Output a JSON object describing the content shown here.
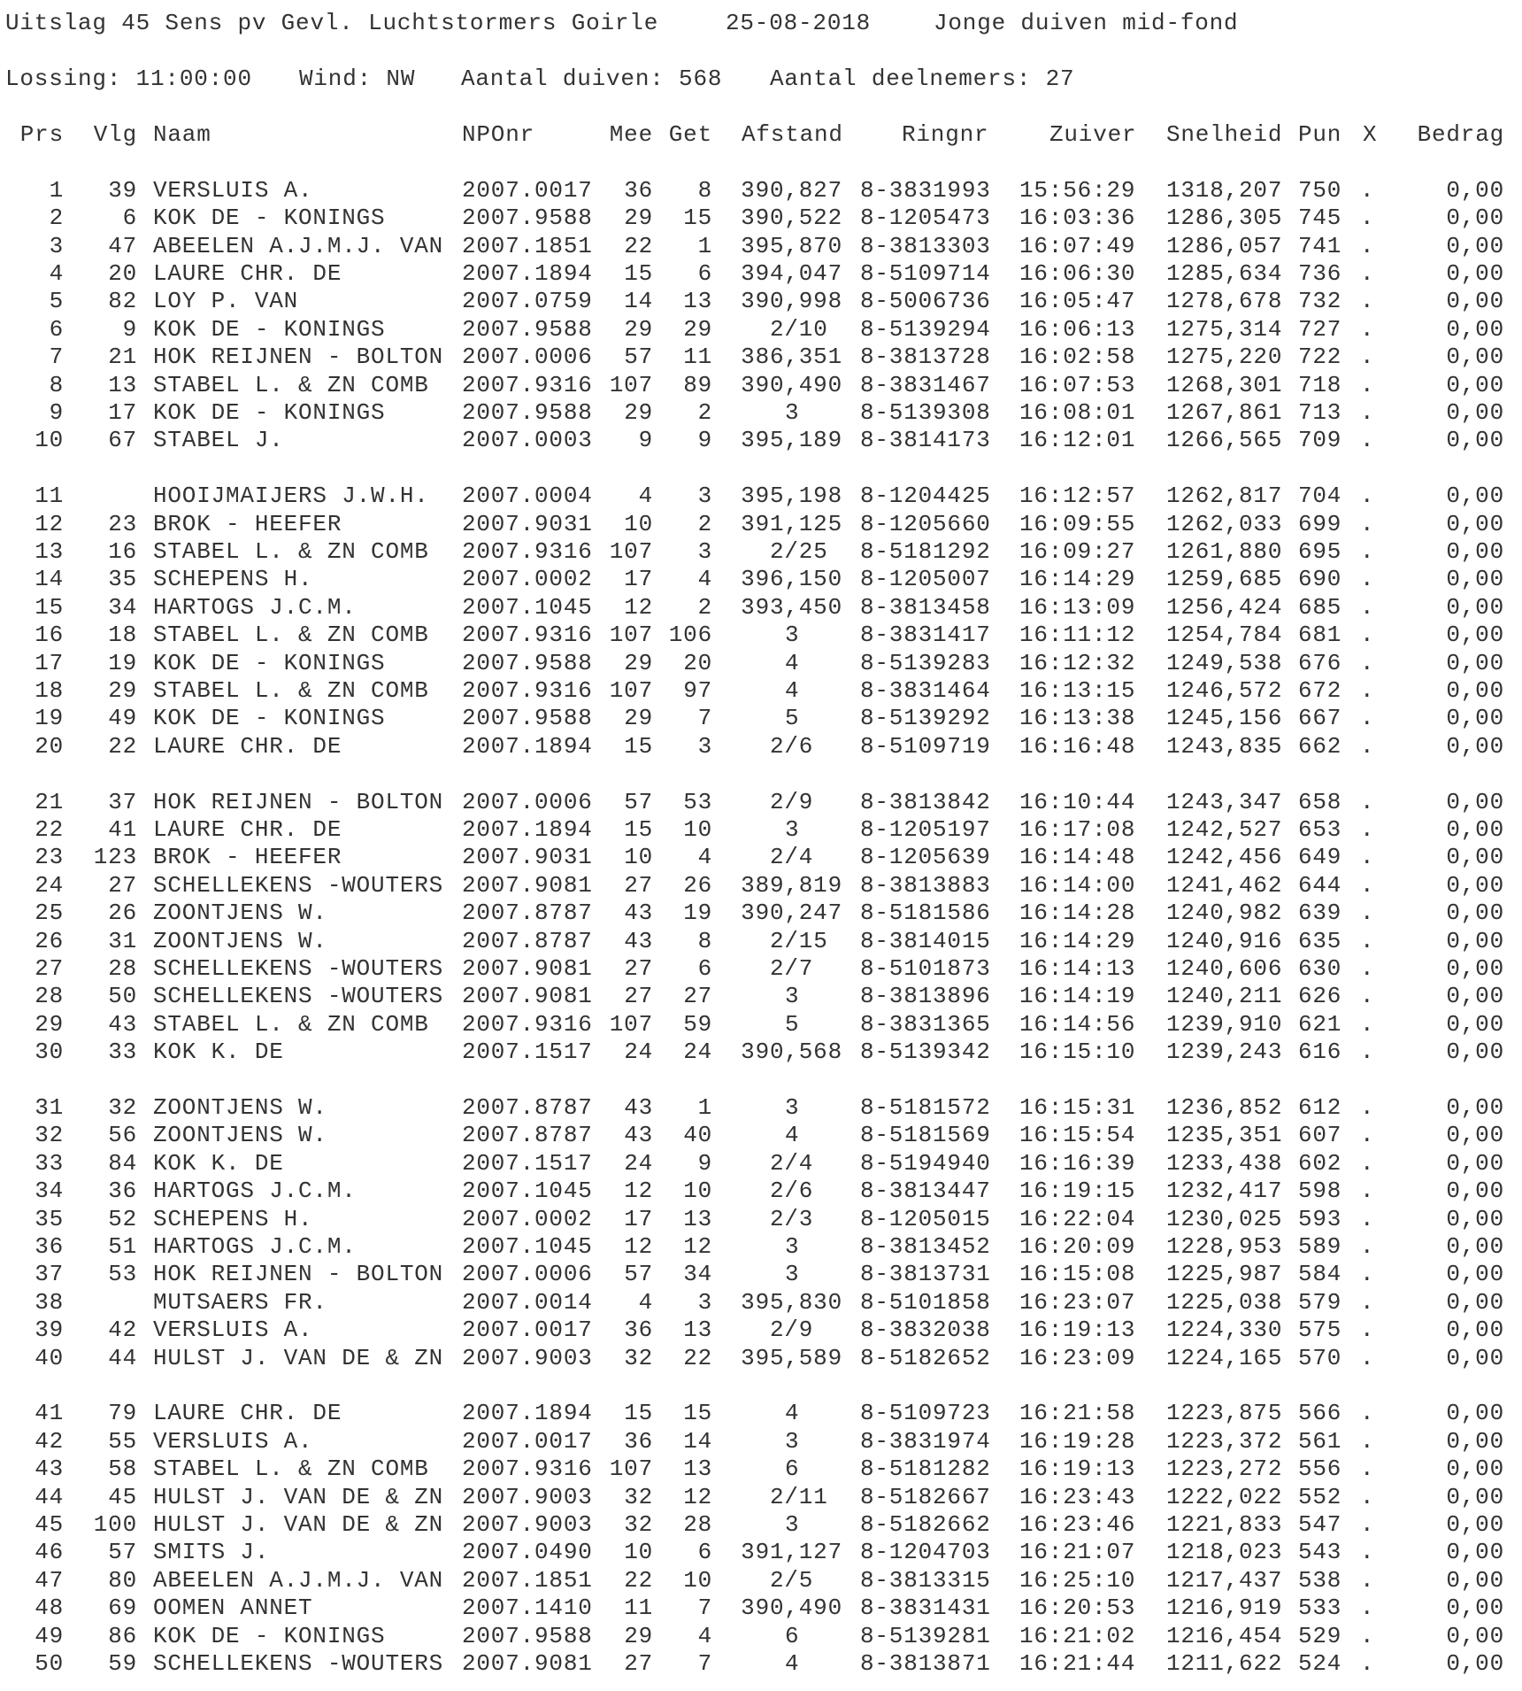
{
  "header": {
    "title": "Uitslag 45 Sens pv Gevl. Luchtstormers Goirle",
    "date": "25-08-2018",
    "category": "Jonge duiven mid-fond",
    "lossing": "Lossing: 11:00:00",
    "wind": "Wind: NW",
    "aantal_duiven": "Aantal duiven: 568",
    "aantal_deelnemers": "Aantal deelnemers: 27"
  },
  "columns": [
    "Prs",
    "Vlg",
    "Naam",
    "NPOnr",
    "Mee",
    "Get",
    "Afstand",
    "Ringnr",
    "Zuiver",
    "Snelheid",
    "Pun",
    "X",
    "Bedrag"
  ],
  "rows": [
    [
      "1",
      "39",
      "VERSLUIS A.",
      "2007.0017",
      "36",
      "8",
      "390,827",
      "8-3831993",
      "15:56:29",
      "1318,207",
      "750",
      ".",
      "0,00"
    ],
    [
      "2",
      "6",
      "KOK DE - KONINGS",
      "2007.9588",
      "29",
      "15",
      "390,522",
      "8-1205473",
      "16:03:36",
      "1286,305",
      "745",
      ".",
      "0,00"
    ],
    [
      "3",
      "47",
      "ABEELEN A.J.M.J. VAN",
      "2007.1851",
      "22",
      "1",
      "395,870",
      "8-3813303",
      "16:07:49",
      "1286,057",
      "741",
      ".",
      "0,00"
    ],
    [
      "4",
      "20",
      "LAURE CHR. DE",
      "2007.1894",
      "15",
      "6",
      "394,047",
      "8-5109714",
      "16:06:30",
      "1285,634",
      "736",
      ".",
      "0,00"
    ],
    [
      "5",
      "82",
      "LOY P. VAN",
      "2007.0759",
      "14",
      "13",
      "390,998",
      "8-5006736",
      "16:05:47",
      "1278,678",
      "732",
      ".",
      "0,00"
    ],
    [
      "6",
      "9",
      "KOK DE - KONINGS",
      "2007.9588",
      "29",
      "29",
      "2/10",
      "8-5139294",
      "16:06:13",
      "1275,314",
      "727",
      ".",
      "0,00"
    ],
    [
      "7",
      "21",
      "HOK REIJNEN - BOLTON",
      "2007.0006",
      "57",
      "11",
      "386,351",
      "8-3813728",
      "16:02:58",
      "1275,220",
      "722",
      ".",
      "0,00"
    ],
    [
      "8",
      "13",
      "STABEL L. & ZN COMB",
      "2007.9316",
      "107",
      "89",
      "390,490",
      "8-3831467",
      "16:07:53",
      "1268,301",
      "718",
      ".",
      "0,00"
    ],
    [
      "9",
      "17",
      "KOK DE - KONINGS",
      "2007.9588",
      "29",
      "2",
      "3",
      "8-5139308",
      "16:08:01",
      "1267,861",
      "713",
      ".",
      "0,00"
    ],
    [
      "10",
      "67",
      "STABEL J.",
      "2007.0003",
      "9",
      "9",
      "395,189",
      "8-3814173",
      "16:12:01",
      "1266,565",
      "709",
      ".",
      "0,00"
    ],
    [
      "11",
      "",
      "HOOIJMAIJERS J.W.H.",
      "2007.0004",
      "4",
      "3",
      "395,198",
      "8-1204425",
      "16:12:57",
      "1262,817",
      "704",
      ".",
      "0,00"
    ],
    [
      "12",
      "23",
      "BROK - HEEFER",
      "2007.9031",
      "10",
      "2",
      "391,125",
      "8-1205660",
      "16:09:55",
      "1262,033",
      "699",
      ".",
      "0,00"
    ],
    [
      "13",
      "16",
      "STABEL L. & ZN COMB",
      "2007.9316",
      "107",
      "3",
      "2/25",
      "8-5181292",
      "16:09:27",
      "1261,880",
      "695",
      ".",
      "0,00"
    ],
    [
      "14",
      "35",
      "SCHEPENS H.",
      "2007.0002",
      "17",
      "4",
      "396,150",
      "8-1205007",
      "16:14:29",
      "1259,685",
      "690",
      ".",
      "0,00"
    ],
    [
      "15",
      "34",
      "HARTOGS J.C.M.",
      "2007.1045",
      "12",
      "2",
      "393,450",
      "8-3813458",
      "16:13:09",
      "1256,424",
      "685",
      ".",
      "0,00"
    ],
    [
      "16",
      "18",
      "STABEL L. & ZN COMB",
      "2007.9316",
      "107",
      "106",
      "3",
      "8-3831417",
      "16:11:12",
      "1254,784",
      "681",
      ".",
      "0,00"
    ],
    [
      "17",
      "19",
      "KOK DE - KONINGS",
      "2007.9588",
      "29",
      "20",
      "4",
      "8-5139283",
      "16:12:32",
      "1249,538",
      "676",
      ".",
      "0,00"
    ],
    [
      "18",
      "29",
      "STABEL L. & ZN COMB",
      "2007.9316",
      "107",
      "97",
      "4",
      "8-3831464",
      "16:13:15",
      "1246,572",
      "672",
      ".",
      "0,00"
    ],
    [
      "19",
      "49",
      "KOK DE - KONINGS",
      "2007.9588",
      "29",
      "7",
      "5",
      "8-5139292",
      "16:13:38",
      "1245,156",
      "667",
      ".",
      "0,00"
    ],
    [
      "20",
      "22",
      "LAURE CHR. DE",
      "2007.1894",
      "15",
      "3",
      "2/6",
      "8-5109719",
      "16:16:48",
      "1243,835",
      "662",
      ".",
      "0,00"
    ],
    [
      "21",
      "37",
      "HOK REIJNEN - BOLTON",
      "2007.0006",
      "57",
      "53",
      "2/9",
      "8-3813842",
      "16:10:44",
      "1243,347",
      "658",
      ".",
      "0,00"
    ],
    [
      "22",
      "41",
      "LAURE CHR. DE",
      "2007.1894",
      "15",
      "10",
      "3",
      "8-1205197",
      "16:17:08",
      "1242,527",
      "653",
      ".",
      "0,00"
    ],
    [
      "23",
      "123",
      "BROK - HEEFER",
      "2007.9031",
      "10",
      "4",
      "2/4",
      "8-1205639",
      "16:14:48",
      "1242,456",
      "649",
      ".",
      "0,00"
    ],
    [
      "24",
      "27",
      "SCHELLEKENS -WOUTERS",
      "2007.9081",
      "27",
      "26",
      "389,819",
      "8-3813883",
      "16:14:00",
      "1241,462",
      "644",
      ".",
      "0,00"
    ],
    [
      "25",
      "26",
      "ZOONTJENS W.",
      "2007.8787",
      "43",
      "19",
      "390,247",
      "8-5181586",
      "16:14:28",
      "1240,982",
      "639",
      ".",
      "0,00"
    ],
    [
      "26",
      "31",
      "ZOONTJENS W.",
      "2007.8787",
      "43",
      "8",
      "2/15",
      "8-3814015",
      "16:14:29",
      "1240,916",
      "635",
      ".",
      "0,00"
    ],
    [
      "27",
      "28",
      "SCHELLEKENS -WOUTERS",
      "2007.9081",
      "27",
      "6",
      "2/7",
      "8-5101873",
      "16:14:13",
      "1240,606",
      "630",
      ".",
      "0,00"
    ],
    [
      "28",
      "50",
      "SCHELLEKENS -WOUTERS",
      "2007.9081",
      "27",
      "27",
      "3",
      "8-3813896",
      "16:14:19",
      "1240,211",
      "626",
      ".",
      "0,00"
    ],
    [
      "29",
      "43",
      "STABEL L. & ZN COMB",
      "2007.9316",
      "107",
      "59",
      "5",
      "8-3831365",
      "16:14:56",
      "1239,910",
      "621",
      ".",
      "0,00"
    ],
    [
      "30",
      "33",
      "KOK K. DE",
      "2007.1517",
      "24",
      "24",
      "390,568",
      "8-5139342",
      "16:15:10",
      "1239,243",
      "616",
      ".",
      "0,00"
    ],
    [
      "31",
      "32",
      "ZOONTJENS W.",
      "2007.8787",
      "43",
      "1",
      "3",
      "8-5181572",
      "16:15:31",
      "1236,852",
      "612",
      ".",
      "0,00"
    ],
    [
      "32",
      "56",
      "ZOONTJENS W.",
      "2007.8787",
      "43",
      "40",
      "4",
      "8-5181569",
      "16:15:54",
      "1235,351",
      "607",
      ".",
      "0,00"
    ],
    [
      "33",
      "84",
      "KOK K. DE",
      "2007.1517",
      "24",
      "9",
      "2/4",
      "8-5194940",
      "16:16:39",
      "1233,438",
      "602",
      ".",
      "0,00"
    ],
    [
      "34",
      "36",
      "HARTOGS J.C.M.",
      "2007.1045",
      "12",
      "10",
      "2/6",
      "8-3813447",
      "16:19:15",
      "1232,417",
      "598",
      ".",
      "0,00"
    ],
    [
      "35",
      "52",
      "SCHEPENS H.",
      "2007.0002",
      "17",
      "13",
      "2/3",
      "8-1205015",
      "16:22:04",
      "1230,025",
      "593",
      ".",
      "0,00"
    ],
    [
      "36",
      "51",
      "HARTOGS J.C.M.",
      "2007.1045",
      "12",
      "12",
      "3",
      "8-3813452",
      "16:20:09",
      "1228,953",
      "589",
      ".",
      "0,00"
    ],
    [
      "37",
      "53",
      "HOK REIJNEN - BOLTON",
      "2007.0006",
      "57",
      "34",
      "3",
      "8-3813731",
      "16:15:08",
      "1225,987",
      "584",
      ".",
      "0,00"
    ],
    [
      "38",
      "",
      "MUTSAERS FR.",
      "2007.0014",
      "4",
      "3",
      "395,830",
      "8-5101858",
      "16:23:07",
      "1225,038",
      "579",
      ".",
      "0,00"
    ],
    [
      "39",
      "42",
      "VERSLUIS A.",
      "2007.0017",
      "36",
      "13",
      "2/9",
      "8-3832038",
      "16:19:13",
      "1224,330",
      "575",
      ".",
      "0,00"
    ],
    [
      "40",
      "44",
      "HULST J. VAN DE & ZN",
      "2007.9003",
      "32",
      "22",
      "395,589",
      "8-5182652",
      "16:23:09",
      "1224,165",
      "570",
      ".",
      "0,00"
    ],
    [
      "41",
      "79",
      "LAURE CHR. DE",
      "2007.1894",
      "15",
      "15",
      "4",
      "8-5109723",
      "16:21:58",
      "1223,875",
      "566",
      ".",
      "0,00"
    ],
    [
      "42",
      "55",
      "VERSLUIS A.",
      "2007.0017",
      "36",
      "14",
      "3",
      "8-3831974",
      "16:19:28",
      "1223,372",
      "561",
      ".",
      "0,00"
    ],
    [
      "43",
      "58",
      "STABEL L. & ZN COMB",
      "2007.9316",
      "107",
      "13",
      "6",
      "8-5181282",
      "16:19:13",
      "1223,272",
      "556",
      ".",
      "0,00"
    ],
    [
      "44",
      "45",
      "HULST J. VAN DE & ZN",
      "2007.9003",
      "32",
      "12",
      "2/11",
      "8-5182667",
      "16:23:43",
      "1222,022",
      "552",
      ".",
      "0,00"
    ],
    [
      "45",
      "100",
      "HULST J. VAN DE & ZN",
      "2007.9003",
      "32",
      "28",
      "3",
      "8-5182662",
      "16:23:46",
      "1221,833",
      "547",
      ".",
      "0,00"
    ],
    [
      "46",
      "57",
      "SMITS J.",
      "2007.0490",
      "10",
      "6",
      "391,127",
      "8-1204703",
      "16:21:07",
      "1218,023",
      "543",
      ".",
      "0,00"
    ],
    [
      "47",
      "80",
      "ABEELEN A.J.M.J. VAN",
      "2007.1851",
      "22",
      "10",
      "2/5",
      "8-3813315",
      "16:25:10",
      "1217,437",
      "538",
      ".",
      "0,00"
    ],
    [
      "48",
      "69",
      "OOMEN ANNET",
      "2007.1410",
      "11",
      "7",
      "390,490",
      "8-3831431",
      "16:20:53",
      "1216,919",
      "533",
      ".",
      "0,00"
    ],
    [
      "49",
      "86",
      "KOK DE - KONINGS",
      "2007.9588",
      "29",
      "4",
      "6",
      "8-5139281",
      "16:21:02",
      "1216,454",
      "529",
      ".",
      "0,00"
    ],
    [
      "50",
      "59",
      "SCHELLEKENS -WOUTERS",
      "2007.9081",
      "27",
      "7",
      "4",
      "8-3813871",
      "16:21:44",
      "1211,622",
      "524",
      ".",
      "0,00"
    ]
  ]
}
